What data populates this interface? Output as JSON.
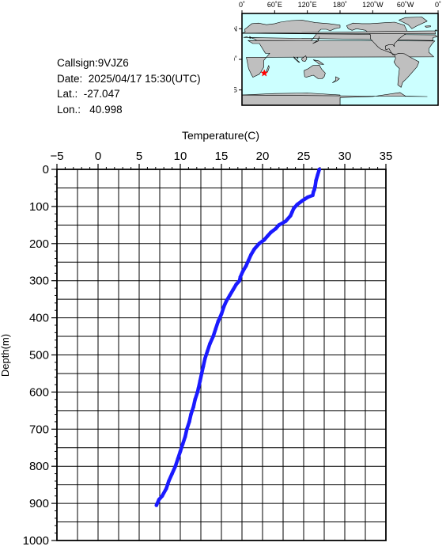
{
  "meta": {
    "callsign_label": "Callsign:",
    "callsign": "9VJZ6",
    "date_label": "Date:",
    "date": "2025/04/17 15:30(UTC)",
    "lat_label": "Lat.:",
    "lat": "-27.047",
    "lon_label": "Lon.:",
    "lon": "40.998"
  },
  "map": {
    "top_labels": [
      "0˚",
      "60˚E",
      "120˚E",
      "180˚",
      "120˚W",
      "60˚W",
      "0˚"
    ],
    "left_labels": [
      "60˚N",
      "0˚",
      "60˚S"
    ],
    "ocean_color": "#ccffff",
    "land_color": "#bfbfbf",
    "marker_color": "#ff0000",
    "marker": {
      "lat": -27.047,
      "lon": 40.998
    }
  },
  "chart_data": {
    "type": "line",
    "xlabel": "Temperature(C)",
    "ylabel": "Depth(m)",
    "xlim": [
      -5,
      35
    ],
    "ylim": [
      0,
      1000
    ],
    "y_inverted": true,
    "x_axis_position": "top",
    "grid": true,
    "x_ticks": [
      -5,
      0,
      5,
      10,
      15,
      20,
      25,
      30,
      35
    ],
    "y_ticks": [
      0,
      100,
      200,
      300,
      400,
      500,
      600,
      700,
      800,
      900,
      1000
    ],
    "line_color": "#1a1aff",
    "series": [
      {
        "x": [
          26.9,
          26.7,
          26.5,
          26.4,
          26.3,
          26.2,
          26.1,
          25.5,
          24.8,
          24.2,
          23.8,
          23.6,
          23.4,
          22.8,
          22.0,
          21.6,
          21.0,
          20.6,
          20.2,
          19.6,
          19.0,
          18.6,
          18.3,
          18.0,
          17.6,
          17.3,
          17.2,
          16.8,
          16.4,
          16.0,
          15.6,
          15.3,
          15.0,
          14.6,
          14.3,
          14.0,
          13.6,
          13.3,
          13.0,
          12.8,
          12.6,
          12.4,
          12.2,
          12.1,
          11.8,
          11.6,
          11.3,
          11.1,
          10.8,
          10.6,
          10.3,
          10.0,
          9.7,
          9.4,
          9.0,
          8.6,
          8.3,
          7.8,
          7.4,
          7.1
        ],
        "y": [
          0,
          15,
          30,
          45,
          55,
          60,
          70,
          75,
          85,
          95,
          105,
          115,
          125,
          140,
          150,
          160,
          170,
          180,
          190,
          200,
          215,
          230,
          245,
          260,
          275,
          290,
          300,
          310,
          325,
          340,
          355,
          370,
          390,
          410,
          430,
          450,
          470,
          490,
          510,
          530,
          550,
          570,
          590,
          600,
          620,
          640,
          660,
          680,
          700,
          720,
          740,
          760,
          780,
          800,
          820,
          840,
          860,
          880,
          890,
          905
        ]
      }
    ]
  }
}
